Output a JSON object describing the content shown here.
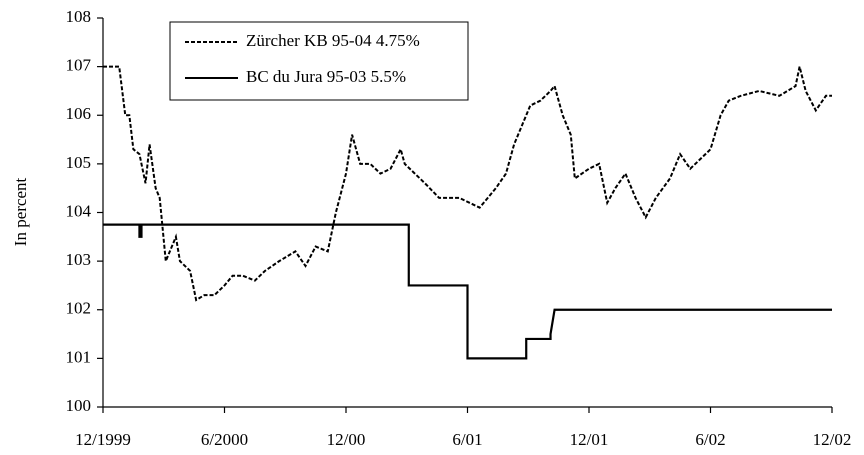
{
  "chart_data": {
    "type": "line",
    "ylabel": "In percent",
    "xlim": [
      0,
      36
    ],
    "xticks": [
      {
        "value": 0,
        "label": "12/1999"
      },
      {
        "value": 6,
        "label": "6/2000"
      },
      {
        "value": 12,
        "label": "12/00"
      },
      {
        "value": 18,
        "label": "6/01"
      },
      {
        "value": 24,
        "label": "12/01"
      },
      {
        "value": 30,
        "label": "6/02"
      },
      {
        "value": 36,
        "label": "12/02"
      }
    ],
    "ylim": [
      100,
      108
    ],
    "yticks": [
      100,
      101,
      102,
      103,
      104,
      105,
      106,
      107,
      108
    ],
    "legend": "top-left",
    "series": [
      {
        "name": "Zürcher KB 95-04 4.75%",
        "color": "#000000",
        "dash": true,
        "x": [
          0,
          0.8,
          1.1,
          1.3,
          1.5,
          1.8,
          2.1,
          2.3,
          2.6,
          2.8,
          3.1,
          3.6,
          3.8,
          4.3,
          4.6,
          5.0,
          5.5,
          6.0,
          6.4,
          6.9,
          7.5,
          8.0,
          8.7,
          9.5,
          10.0,
          10.5,
          11.1,
          11.5,
          12.0,
          12.3,
          12.7,
          13.2,
          13.7,
          14.2,
          14.7,
          14.9,
          15.4,
          15.9,
          16.6,
          17.6,
          18.6,
          19.4,
          19.9,
          20.3,
          20.8,
          21.1,
          21.6,
          22.1,
          22.3,
          22.7,
          23.1,
          23.3,
          24.0,
          24.5,
          24.9,
          25.3,
          25.8,
          26.3,
          26.8,
          27.3,
          28.0,
          28.5,
          29.0,
          29.5,
          30.0,
          30.5,
          30.9,
          31.5,
          32.4,
          33.4,
          34.2,
          34.4,
          34.7,
          35.2,
          35.7,
          36.0
        ],
        "values": [
          107,
          107,
          106,
          106,
          105.3,
          105.2,
          104.6,
          105.4,
          104.5,
          104.3,
          103.0,
          103.5,
          103.0,
          102.8,
          102.2,
          102.3,
          102.3,
          102.5,
          102.7,
          102.7,
          102.6,
          102.8,
          103.0,
          103.2,
          102.9,
          103.3,
          103.2,
          104.0,
          104.8,
          105.6,
          105.0,
          105.0,
          104.8,
          104.9,
          105.3,
          105.0,
          104.8,
          104.6,
          104.3,
          104.3,
          104.1,
          104.5,
          104.8,
          105.4,
          105.9,
          106.2,
          106.3,
          106.5,
          106.6,
          106.0,
          105.6,
          104.7,
          104.9,
          105.0,
          104.2,
          104.5,
          104.8,
          104.3,
          103.9,
          104.3,
          104.7,
          105.2,
          104.9,
          105.1,
          105.3,
          106.0,
          106.3,
          106.4,
          106.5,
          106.4,
          106.6,
          107.0,
          106.5,
          106.1,
          106.4,
          106.4
        ]
      },
      {
        "name": "BC du Jura 95-03 5.5%",
        "color": "#000000",
        "dash": false,
        "x": [
          0,
          1.8,
          1.8,
          1.9,
          1.9,
          15.1,
          15.1,
          18,
          18,
          20.9,
          20.9,
          22.1,
          22.1,
          22.3,
          36
        ],
        "values": [
          103.75,
          103.75,
          103.5,
          103.5,
          103.75,
          103.75,
          102.5,
          102.5,
          101,
          101,
          101.4,
          101.4,
          101.5,
          102,
          102
        ]
      }
    ]
  }
}
